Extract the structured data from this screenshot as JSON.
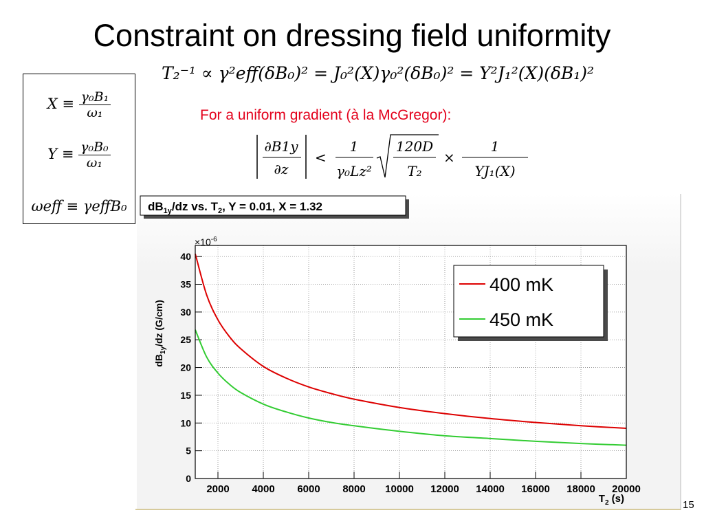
{
  "slide": {
    "title": "Constraint on dressing field uniformity",
    "note": "For a uniform gradient (à la McGregor):",
    "page_number": "15"
  },
  "definitions": {
    "x_lhs": "X ≡",
    "x_num": "γ₀B₁",
    "x_den": "ω₁",
    "y_lhs": "Y ≡",
    "y_num": "γ₀B₀",
    "y_den": "ω₁",
    "weff": "ωeff ≡ γeffB₀"
  },
  "equations": {
    "main": "T₂⁻¹ ∝ γ²eff(δB₀)² = J₀²(X)γ₀²(δB₀)² = Y²J₁²(X)(δB₁)²",
    "grad_lhs_num": "∂B1y",
    "grad_lhs_den": "∂z",
    "grad_lt": "<",
    "grad_f1_num": "1",
    "grad_f1_den": "γ₀Lz²",
    "grad_sqrt_num": "120D",
    "grad_sqrt_den": "T₂",
    "grad_times": "×",
    "grad_f2_num": "1",
    "grad_f2_den": "YJ₁(X)"
  },
  "chart_data": {
    "type": "line",
    "title": "dB1y/dz vs. T2, Y = 0.01, X = 1.32",
    "xlabel": "T2 (s)",
    "ylabel": "dB1y/dz (G/cm)",
    "y_multiplier": "×10-6",
    "xlim": [
      1000,
      20000
    ],
    "ylim": [
      0,
      42
    ],
    "x_ticks": [
      2000,
      4000,
      6000,
      8000,
      10000,
      12000,
      14000,
      16000,
      18000,
      20000
    ],
    "y_ticks": [
      0,
      5,
      10,
      15,
      20,
      25,
      30,
      35,
      40
    ],
    "grid": true,
    "legend_position": "top-right",
    "series": [
      {
        "name": "400 mK",
        "color": "#dd0000",
        "x": [
          1000,
          1500,
          2000,
          2500,
          3000,
          4000,
          5000,
          6000,
          7000,
          8000,
          10000,
          12000,
          14000,
          16000,
          18000,
          20000
        ],
        "y": [
          40.5,
          33.1,
          28.6,
          25.6,
          23.4,
          20.2,
          18.1,
          16.5,
          15.3,
          14.3,
          12.8,
          11.7,
          10.8,
          10.1,
          9.5,
          9.05
        ]
      },
      {
        "name": "450 mK",
        "color": "#33cc33",
        "x": [
          1000,
          1500,
          2000,
          2500,
          3000,
          4000,
          5000,
          6000,
          7000,
          8000,
          10000,
          12000,
          14000,
          16000,
          18000,
          20000
        ],
        "y": [
          26.8,
          21.9,
          19.0,
          17.0,
          15.5,
          13.4,
          12.0,
          10.9,
          10.1,
          9.5,
          8.5,
          7.7,
          7.2,
          6.7,
          6.3,
          6.0
        ]
      }
    ]
  }
}
